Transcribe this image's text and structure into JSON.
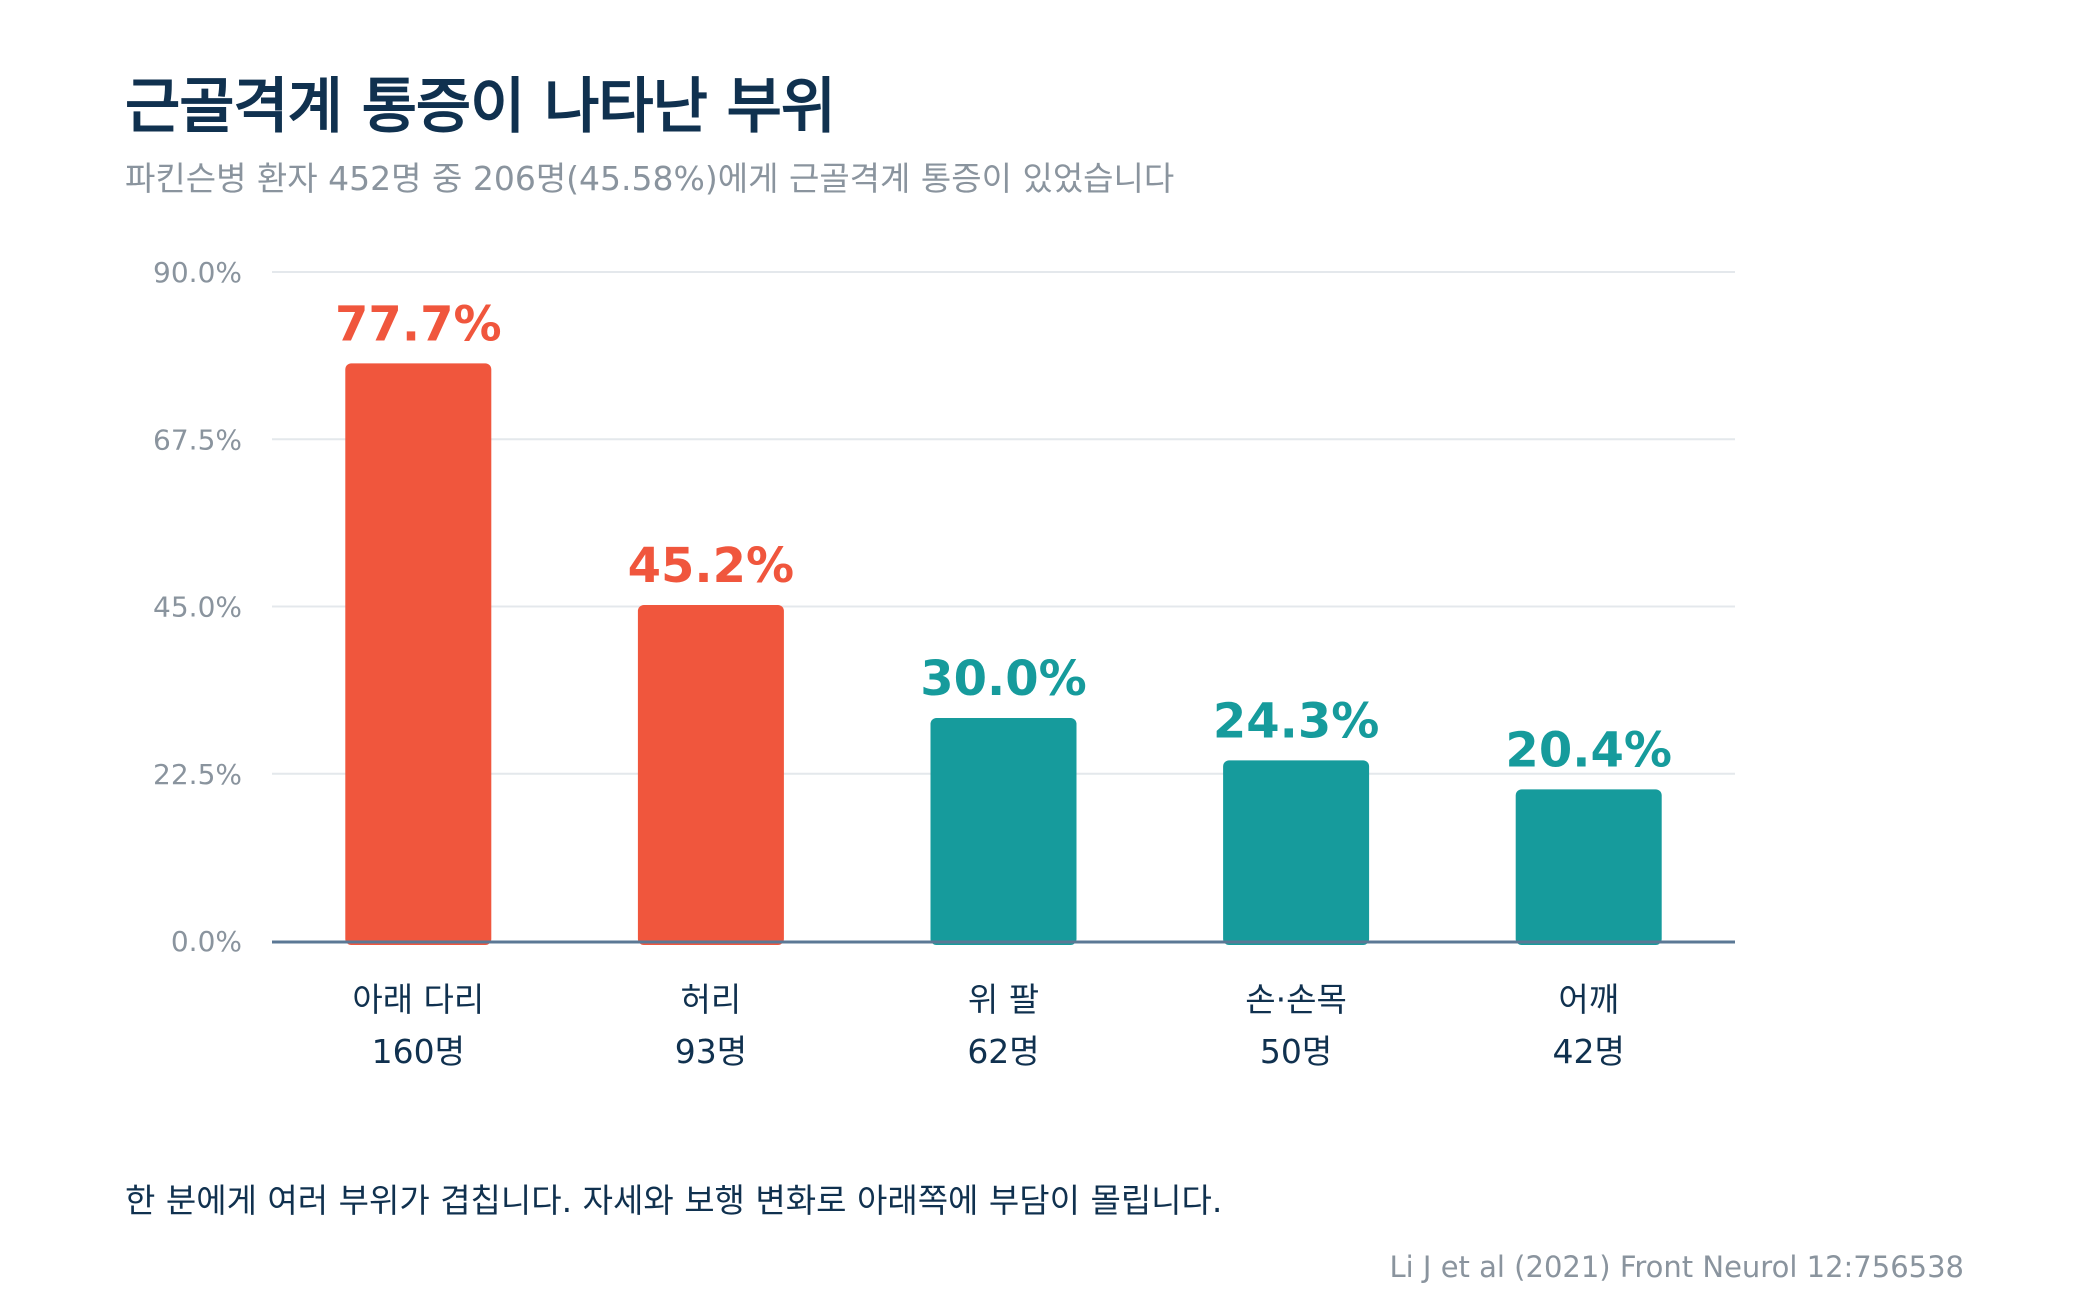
{
  "title": "근골격계 통증이 나타난 부위",
  "subtitle": "파킨슨병 환자 452명 중 206명(45.58%)에게 근골격계 통증이 있었습니다",
  "note": "한 분에게 여러 부위가 겹칩니다. 자세와 보행 변화로 아래쪽에 부담이 몰립니다.",
  "source": "Li J et al (2021) Front Neurol 12:756538",
  "colors": {
    "highlight": "#f0563d",
    "normal": "#169b9c",
    "title": "#10314f",
    "muted": "#8a949e",
    "grid": "#e4e8ec",
    "axis": "#5b7895"
  },
  "chart_data": {
    "type": "bar",
    "categories": [
      "아래 다리",
      "허리",
      "위 팔",
      "손·손목",
      "어깨"
    ],
    "counts": [
      "160명",
      "93명",
      "62명",
      "50명",
      "42명"
    ],
    "values": [
      77.7,
      45.2,
      30.0,
      24.3,
      20.4
    ],
    "value_labels": [
      "77.7%",
      "45.2%",
      "30.0%",
      "24.3%",
      "20.4%"
    ],
    "highlighted": [
      true,
      true,
      false,
      false,
      false
    ],
    "ylim": [
      0,
      90
    ],
    "yticks": [
      0,
      22.5,
      45,
      67.5,
      90
    ],
    "ytick_labels": [
      "0.0%",
      "22.5%",
      "45.0%",
      "67.5%",
      "90.0%"
    ],
    "grid": true,
    "legend": "none"
  }
}
